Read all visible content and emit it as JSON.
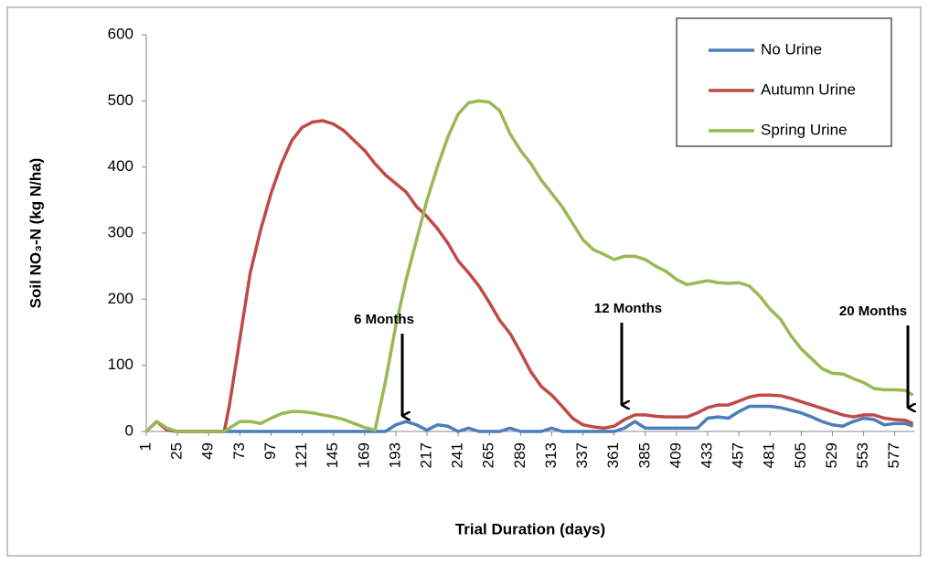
{
  "chart_data": {
    "type": "line",
    "y_label": "Soil NO₃-N (kg N/ha)",
    "x_label": "Trial Duration  (days)",
    "x": [
      1,
      9,
      17,
      25,
      33,
      41,
      49,
      57,
      61,
      65,
      73,
      81,
      89,
      97,
      105,
      113,
      121,
      129,
      137,
      145,
      153,
      161,
      169,
      177,
      185,
      193,
      201,
      209,
      217,
      225,
      233,
      241,
      249,
      257,
      265,
      273,
      281,
      289,
      297,
      305,
      313,
      321,
      329,
      337,
      345,
      353,
      361,
      369,
      377,
      385,
      393,
      401,
      409,
      417,
      425,
      433,
      441,
      449,
      457,
      465,
      473,
      481,
      489,
      497,
      505,
      513,
      521,
      529,
      537,
      545,
      553,
      561,
      569,
      577,
      585,
      591
    ],
    "series": [
      {
        "name": "No Urine",
        "color": "#4a7ebb",
        "values": [
          0,
          15,
          2,
          0,
          0,
          0,
          0,
          0,
          0,
          0,
          0,
          0,
          0,
          0,
          0,
          0,
          0,
          0,
          0,
          0,
          0,
          0,
          0,
          0,
          0,
          10,
          15,
          10,
          2,
          10,
          8,
          0,
          5,
          0,
          0,
          0,
          5,
          0,
          0,
          0,
          5,
          0,
          0,
          0,
          0,
          0,
          0,
          5,
          15,
          5,
          5,
          5,
          5,
          5,
          5,
          20,
          22,
          20,
          30,
          38,
          38,
          38,
          36,
          32,
          28,
          22,
          15,
          10,
          8,
          15,
          20,
          18,
          10,
          12,
          12,
          8
        ]
      },
      {
        "name": "Autumn Urine",
        "color": "#be4b48",
        "values": [
          0,
          15,
          2,
          0,
          0,
          0,
          0,
          0,
          0,
          40,
          140,
          240,
          305,
          360,
          405,
          440,
          460,
          468,
          470,
          465,
          455,
          440,
          425,
          405,
          388,
          375,
          362,
          340,
          325,
          307,
          285,
          258,
          240,
          220,
          195,
          168,
          148,
          120,
          90,
          68,
          55,
          38,
          20,
          10,
          7,
          5,
          8,
          18,
          25,
          25,
          23,
          22,
          22,
          22,
          28,
          36,
          40,
          40,
          46,
          52,
          55,
          55,
          54,
          50,
          45,
          40,
          35,
          30,
          25,
          22,
          25,
          25,
          20,
          18,
          17,
          12
        ]
      },
      {
        "name": "Spring Urine",
        "color": "#98b954",
        "values": [
          0,
          15,
          5,
          0,
          0,
          0,
          0,
          0,
          0,
          5,
          15,
          15,
          12,
          20,
          27,
          30,
          30,
          28,
          25,
          22,
          18,
          12,
          6,
          2,
          75,
          160,
          230,
          290,
          350,
          400,
          445,
          480,
          497,
          500,
          498,
          485,
          450,
          425,
          405,
          380,
          360,
          340,
          315,
          290,
          275,
          268,
          260,
          265,
          265,
          260,
          250,
          242,
          230,
          222,
          225,
          228,
          225,
          224,
          225,
          220,
          205,
          185,
          170,
          145,
          125,
          110,
          95,
          88,
          87,
          80,
          74,
          65,
          63,
          63,
          62,
          55
        ]
      }
    ],
    "annotations": [
      "6 Months",
      "12 Months",
      "20 Months"
    ],
    "xlim": [
      1,
      592
    ],
    "xticks": [
      1,
      25,
      49,
      73,
      97,
      121,
      145,
      169,
      193,
      217,
      241,
      265,
      289,
      313,
      337,
      361,
      385,
      409,
      433,
      457,
      481,
      505,
      529,
      553,
      577
    ],
    "ylim": [
      0,
      600
    ],
    "yticks": [
      0,
      100,
      200,
      300,
      400,
      500,
      600
    ],
    "legend": "top-right"
  }
}
